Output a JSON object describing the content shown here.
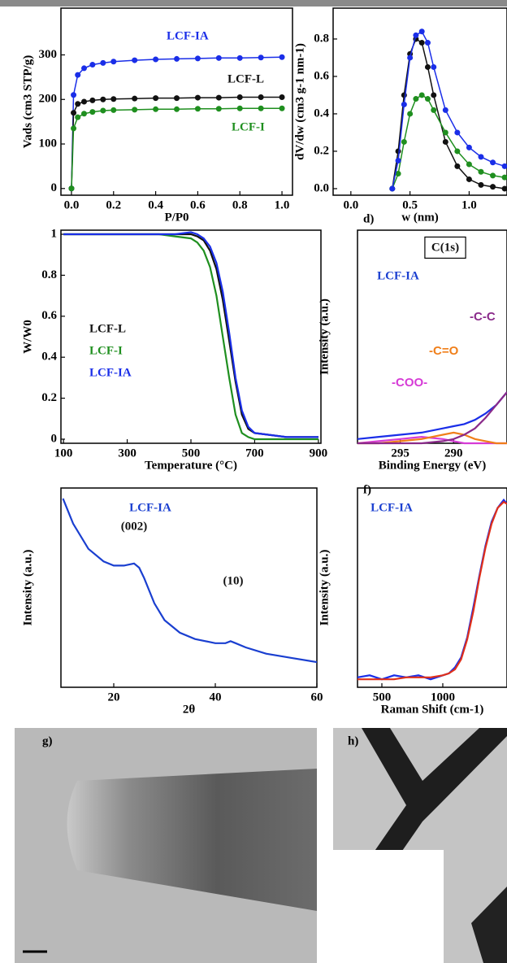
{
  "chart_data": [
    {
      "type": "line",
      "markers": true,
      "xlabel": "P/P0",
      "ylabel": "Vads (cm3 STP/g)",
      "x": [
        0,
        0.01,
        0.03,
        0.06,
        0.1,
        0.15,
        0.2,
        0.3,
        0.4,
        0.5,
        0.6,
        0.7,
        0.8,
        0.9,
        1.0
      ],
      "series": [
        {
          "name": "LCF-IA",
          "color": "#1a2ee8",
          "values": [
            0,
            210,
            255,
            270,
            278,
            282,
            285,
            288,
            290,
            291,
            292,
            293,
            293,
            294,
            295
          ]
        },
        {
          "name": "LCF-L",
          "color": "#111111",
          "values": [
            0,
            170,
            190,
            195,
            198,
            200,
            201,
            202,
            203,
            203,
            204,
            204,
            205,
            205,
            205
          ]
        },
        {
          "name": "LCF-I",
          "color": "#1f8f1f",
          "values": [
            0,
            135,
            160,
            168,
            172,
            175,
            176,
            177,
            178,
            178,
            179,
            179,
            180,
            180,
            180
          ]
        }
      ],
      "xlim": [
        -0.05,
        1.05
      ],
      "ylim": [
        -15,
        405
      ],
      "xticks": [
        {
          "value": 0,
          "label": "0.0"
        },
        {
          "value": 0.2,
          "label": "0.2"
        },
        {
          "value": 0.4,
          "label": "0.4"
        },
        {
          "value": 0.6,
          "label": "0.6"
        },
        {
          "value": 0.8,
          "label": "0.8"
        },
        {
          "value": 1,
          "label": "1.0"
        }
      ],
      "yticks": [
        0,
        100,
        200,
        300
      ]
    },
    {
      "type": "line",
      "markers": true,
      "xlabel": "w (nm)",
      "ylabel": "dV/dw (cm3 g-1 nm-1)",
      "x": [
        0.35,
        0.4,
        0.45,
        0.5,
        0.55,
        0.6,
        0.65,
        0.7,
        0.8,
        0.9,
        1.0,
        1.1,
        1.2,
        1.3
      ],
      "series": [
        {
          "color": "#111111",
          "values": [
            0,
            0.2,
            0.5,
            0.72,
            0.8,
            0.78,
            0.65,
            0.5,
            0.25,
            0.12,
            0.05,
            0.02,
            0.01,
            0
          ]
        },
        {
          "color": "#1f8f1f",
          "values": [
            0,
            0.08,
            0.25,
            0.4,
            0.48,
            0.5,
            0.48,
            0.42,
            0.3,
            0.2,
            0.13,
            0.09,
            0.07,
            0.06
          ]
        },
        {
          "color": "#1a2ee8",
          "values": [
            0,
            0.15,
            0.45,
            0.7,
            0.82,
            0.84,
            0.78,
            0.65,
            0.42,
            0.3,
            0.22,
            0.17,
            0.14,
            0.12
          ]
        }
      ],
      "xlim": [
        -0.15,
        1.32
      ],
      "ylim": [
        -0.035,
        0.965
      ],
      "xticks": [
        {
          "value": 0,
          "label": "0.0"
        },
        {
          "value": 0.5,
          "label": "0.5"
        },
        {
          "value": 1,
          "label": "1.0"
        }
      ],
      "yticks": [
        {
          "value": 0,
          "label": "0.0"
        },
        0.2,
        0.4,
        0.6,
        0.8
      ]
    },
    {
      "type": "line",
      "xlabel": "Temperature (°C)",
      "ylabel": "W/W0",
      "x": [
        100,
        200,
        300,
        400,
        450,
        500,
        520,
        540,
        560,
        580,
        600,
        620,
        640,
        660,
        680,
        700,
        750,
        800,
        900
      ],
      "series": [
        {
          "name": "LCF-L",
          "color": "#111111",
          "values": [
            1,
            1,
            1,
            1,
            1,
            1,
            0.99,
            0.97,
            0.92,
            0.83,
            0.68,
            0.48,
            0.28,
            0.12,
            0.05,
            0.03,
            0.02,
            0.01,
            0.01
          ]
        },
        {
          "name": "LCF-I",
          "color": "#1f8f1f",
          "values": [
            1,
            1,
            1,
            1,
            0.99,
            0.98,
            0.96,
            0.92,
            0.84,
            0.7,
            0.5,
            0.3,
            0.12,
            0.03,
            0.01,
            0,
            0,
            0,
            0
          ]
        },
        {
          "name": "LCF-IA",
          "color": "#1a2ee8",
          "values": [
            1,
            1,
            1,
            1,
            1,
            1.01,
            1,
            0.98,
            0.94,
            0.86,
            0.72,
            0.52,
            0.3,
            0.14,
            0.06,
            0.03,
            0.02,
            0.01,
            0.01
          ]
        }
      ],
      "xlim": [
        92,
        908
      ],
      "ylim": [
        -0.02,
        1.02
      ],
      "xticks": [
        100,
        300,
        500,
        700,
        900
      ],
      "yticks": [
        0,
        0.2,
        0.4,
        0.6,
        0.8,
        1
      ]
    },
    {
      "type": "line",
      "label": "d)",
      "xlabel": "Binding Energy (eV)",
      "ylabel": "Intensity (a.u.)",
      "annotations": [
        "C(1s)",
        "LCF-IA"
      ],
      "x": [
        299,
        297,
        295,
        293,
        291,
        290,
        289,
        288,
        287,
        286,
        285
      ],
      "series": [
        {
          "color": "#1a2ee8",
          "values": [
            2,
            3,
            4,
            5,
            7,
            8,
            9,
            11,
            14,
            18,
            24
          ]
        },
        {
          "name": "-COO-",
          "color": "#d63bd6",
          "values": [
            0,
            1,
            2,
            3,
            2,
            1,
            0,
            0,
            0,
            0,
            0
          ]
        },
        {
          "name": "-C=O",
          "color": "#f07f1a",
          "values": [
            0,
            0,
            1,
            2,
            4,
            5,
            4,
            2,
            1,
            0,
            0
          ]
        },
        {
          "name": "-C-C",
          "color": "#8a2a8a",
          "values": [
            0,
            0,
            0,
            0,
            1,
            2,
            4,
            7,
            12,
            18,
            24
          ]
        }
      ],
      "xlim": [
        299,
        285
      ],
      "ylim": [
        0,
        100
      ],
      "xticks": [
        295,
        290
      ]
    },
    {
      "type": "line",
      "xlabel": "2θ",
      "ylabel": "Intensity (a.u.)",
      "annotations": [
        "LCF-IA",
        "(002)",
        "(10)"
      ],
      "x": [
        10,
        12,
        15,
        18,
        20,
        22,
        24,
        25,
        26,
        28,
        30,
        33,
        36,
        40,
        42,
        43,
        44,
        46,
        50,
        55,
        60
      ],
      "series": [
        {
          "color": "#1a3fd0",
          "values": [
            100,
            88,
            76,
            70,
            68,
            68,
            69,
            67,
            62,
            50,
            42,
            36,
            33,
            31,
            31,
            32,
            31,
            29,
            26,
            24,
            22
          ]
        }
      ],
      "xlim": [
        9.6,
        60
      ],
      "ylim": [
        10,
        105
      ],
      "xticks": [
        20,
        40,
        60
      ]
    },
    {
      "type": "line",
      "label": "f)",
      "xlabel": "Raman Shift (cm-1)",
      "ylabel": "Intensity (a.u.)",
      "annotations": [
        "LCF-IA"
      ],
      "x": [
        300,
        400,
        500,
        600,
        700,
        800,
        900,
        1000,
        1050,
        1100,
        1150,
        1200,
        1250,
        1300,
        1350,
        1400,
        1450,
        1500,
        1527
      ],
      "series": [
        {
          "color": "#1a2ee8",
          "values": [
            5,
            6,
            4,
            6,
            5,
            6,
            4,
            6,
            7,
            10,
            15,
            25,
            40,
            56,
            71,
            83,
            90,
            94,
            92
          ]
        },
        {
          "color": "#e0301a",
          "values": [
            4,
            4,
            4,
            4,
            5,
            5,
            5,
            6,
            7,
            9,
            14,
            24,
            38,
            55,
            70,
            82,
            90,
            93,
            92
          ]
        }
      ],
      "xlim": [
        300,
        1527
      ],
      "ylim": [
        0,
        100
      ],
      "xticks": [
        500,
        1000
      ]
    }
  ],
  "images": [
    {
      "label": "g)"
    },
    {
      "label": "h)"
    }
  ]
}
